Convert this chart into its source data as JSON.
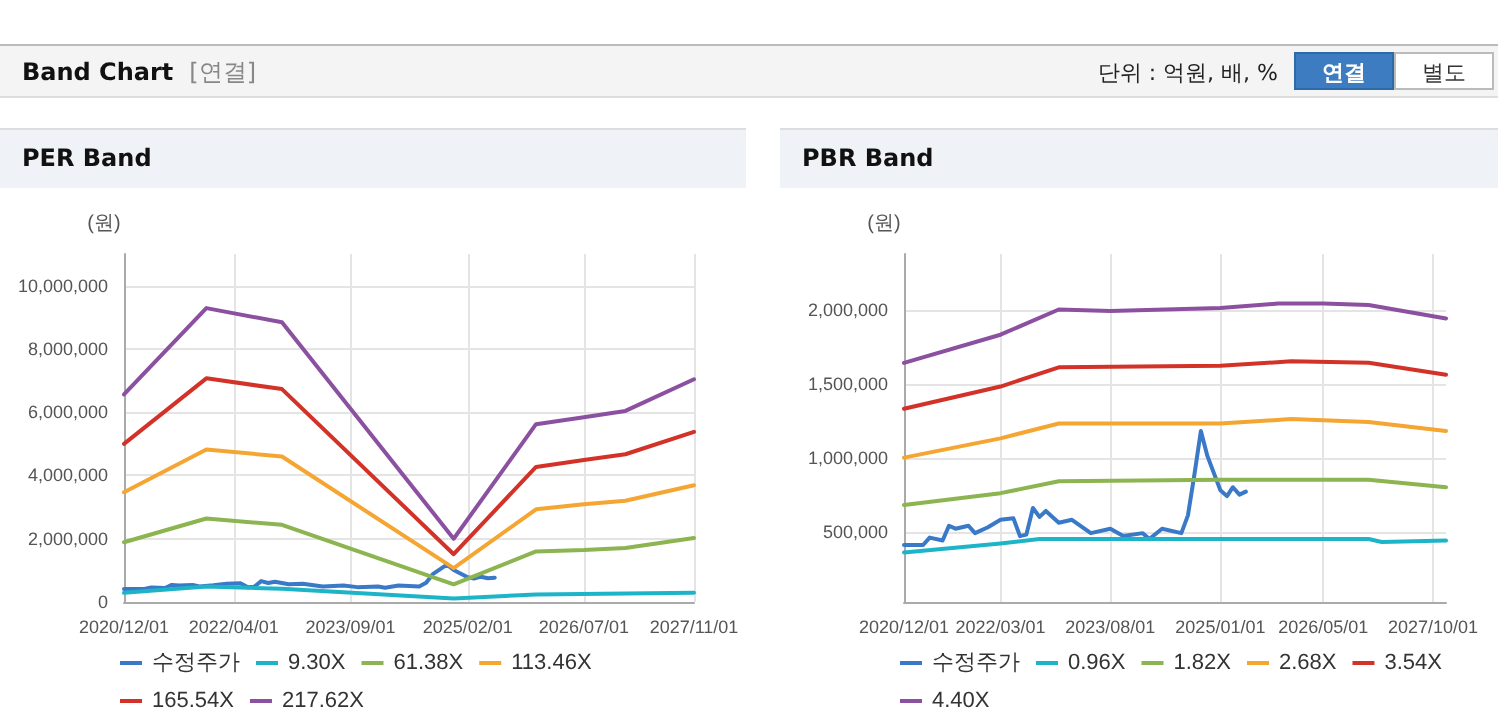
{
  "chart_data": [
    {
      "type": "other",
      "title": "Band Chart",
      "subtitle": "[연결]",
      "annotations": [
        "단위 : 억원, 배, %",
        "연결",
        "별도"
      ]
    },
    {
      "type": "line",
      "title": "PER Band",
      "ylabel": "(원)",
      "legend": "bottom",
      "grid": true,
      "marker": "none",
      "line_style": "solid",
      "xlim": [
        "2020-12-01",
        "2027-11-01"
      ],
      "xticks": [
        {
          "value": "2020-12-01",
          "label": "2020/12/01"
        },
        {
          "value": "2022-04-01",
          "label": "2022/04/01"
        },
        {
          "value": "2023-09-01",
          "label": "2023/09/01"
        },
        {
          "value": "2025-02-01",
          "label": "2025/02/01"
        },
        {
          "value": "2026-07-01",
          "label": "2026/07/01"
        },
        {
          "value": "2027-11-01",
          "label": "2027/11/01"
        }
      ],
      "ylim": [
        0,
        11000000
      ],
      "yticks": [
        {
          "value": 0,
          "label": "0"
        },
        {
          "value": 2000000,
          "label": "2,000,000"
        },
        {
          "value": 4000000,
          "label": "4,000,000"
        },
        {
          "value": 6000000,
          "label": "6,000,000"
        },
        {
          "value": 8000000,
          "label": "8,000,000"
        },
        {
          "value": 10000000,
          "label": "10,000,000"
        }
      ],
      "series": [
        {
          "name": "수정주가",
          "color": "#3a78c8",
          "x": [
            "2020-12",
            "2021-03",
            "2021-04",
            "2021-06",
            "2021-07",
            "2021-08",
            "2021-10",
            "2021-11",
            "2022-01",
            "2022-03",
            "2022-05",
            "2022-06",
            "2022-07",
            "2022-08",
            "2022-09",
            "2022-10",
            "2022-12",
            "2023-02",
            "2023-05",
            "2023-08",
            "2023-10",
            "2024-01",
            "2024-02",
            "2024-04",
            "2024-07",
            "2024-08",
            "2024-09",
            "2024-11",
            "2024-12",
            "2025-02",
            "2025-03",
            "2025-04",
            "2025-05",
            "2025-06"
          ],
          "values": [
            410000,
            410000,
            460000,
            440000,
            540000,
            520000,
            540000,
            490000,
            530000,
            580000,
            590000,
            470000,
            480000,
            660000,
            600000,
            640000,
            560000,
            580000,
            490000,
            520000,
            470000,
            490000,
            450000,
            520000,
            490000,
            610000,
            890000,
            1180000,
            1010000,
            780000,
            740000,
            800000,
            750000,
            770000
          ]
        },
        {
          "name": "9.30X",
          "color": "#1eb4c8",
          "x": [
            "2020-12",
            "2021-12",
            "2022-11",
            "2024-12",
            "2025-12",
            "2027-11"
          ],
          "values": [
            290000,
            490000,
            420000,
            110000,
            240000,
            290000
          ]
        },
        {
          "name": "61.38X",
          "color": "#8cb450",
          "x": [
            "2020-12",
            "2021-12",
            "2022-11",
            "2024-12",
            "2025-12",
            "2026-07",
            "2027-01",
            "2027-11"
          ],
          "values": [
            1890000,
            2640000,
            2440000,
            560000,
            1600000,
            1640000,
            1710000,
            2020000
          ]
        },
        {
          "name": "113.46X",
          "color": "#f5a532",
          "x": [
            "2020-12",
            "2021-12",
            "2022-11",
            "2024-12",
            "2025-12",
            "2026-07",
            "2027-01",
            "2027-11"
          ],
          "values": [
            3470000,
            4820000,
            4600000,
            1070000,
            2930000,
            3090000,
            3200000,
            3690000
          ]
        },
        {
          "name": "165.54X",
          "color": "#d23228",
          "x": [
            "2020-12",
            "2021-12",
            "2022-11",
            "2024-12",
            "2025-12",
            "2026-07",
            "2027-01",
            "2027-11"
          ],
          "values": [
            5000000,
            7070000,
            6730000,
            1510000,
            4270000,
            4490000,
            4670000,
            5380000
          ]
        },
        {
          "name": "217.62X",
          "color": "#8c50a0",
          "x": [
            "2020-12",
            "2021-12",
            "2022-11",
            "2024-12",
            "2025-12",
            "2026-07",
            "2027-01",
            "2027-11"
          ],
          "values": [
            6560000,
            9290000,
            8840000,
            2000000,
            5620000,
            5840000,
            6040000,
            7040000
          ]
        }
      ]
    },
    {
      "type": "line",
      "title": "PBR Band",
      "ylabel": "(원)",
      "legend": "bottom",
      "grid": true,
      "marker": "none",
      "line_style": "solid",
      "xlim": [
        "2020-12-01",
        "2027-12-01"
      ],
      "xticks": [
        {
          "value": "2020-12-01",
          "label": "2020/12/01"
        },
        {
          "value": "2022-03-01",
          "label": "2022/03/01"
        },
        {
          "value": "2023-08-01",
          "label": "2023/08/01"
        },
        {
          "value": "2025-01-01",
          "label": "2025/01/01"
        },
        {
          "value": "2026-05-01",
          "label": "2026/05/01"
        },
        {
          "value": "2027-10-01",
          "label": "2027/10/01"
        }
      ],
      "ylim": [
        25000,
        2375000
      ],
      "yticks": [
        {
          "value": 500000,
          "label": "500,000"
        },
        {
          "value": 1000000,
          "label": "1,000,000"
        },
        {
          "value": 1500000,
          "label": "1,500,000"
        },
        {
          "value": 2000000,
          "label": "2,000,000"
        }
      ],
      "series": [
        {
          "name": "수정주가",
          "color": "#3a78c8",
          "x": [
            "2020-12",
            "2021-03",
            "2021-04",
            "2021-06",
            "2021-07",
            "2021-08",
            "2021-10",
            "2021-11",
            "2022-01",
            "2022-03",
            "2022-05",
            "2022-06",
            "2022-07",
            "2022-08",
            "2022-09",
            "2022-10",
            "2022-12",
            "2023-02",
            "2023-05",
            "2023-08",
            "2023-10",
            "2024-01",
            "2024-02",
            "2024-04",
            "2024-07",
            "2024-08",
            "2024-09",
            "2024-10",
            "2024-11",
            "2025-01",
            "2025-02",
            "2025-03",
            "2025-04",
            "2025-05"
          ],
          "values": [
            410000,
            410000,
            460000,
            440000,
            540000,
            520000,
            540000,
            490000,
            530000,
            580000,
            590000,
            470000,
            480000,
            660000,
            600000,
            640000,
            560000,
            580000,
            490000,
            520000,
            470000,
            490000,
            450000,
            520000,
            490000,
            610000,
            890000,
            1180000,
            1010000,
            780000,
            740000,
            800000,
            750000,
            770000
          ]
        },
        {
          "name": "0.96X",
          "color": "#1eb4c8",
          "x": [
            "2020-12",
            "2022-03",
            "2022-09",
            "2025-01",
            "2026-12",
            "2027-02",
            "2027-12"
          ],
          "values": [
            360000,
            420000,
            450000,
            450000,
            450000,
            430000,
            440000
          ]
        },
        {
          "name": "1.82X",
          "color": "#8cb450",
          "x": [
            "2020-12",
            "2022-03",
            "2022-12",
            "2025-01",
            "2025-12",
            "2026-12",
            "2027-12"
          ],
          "values": [
            680000,
            760000,
            840000,
            850000,
            850000,
            850000,
            800000
          ]
        },
        {
          "name": "2.68X",
          "color": "#f5a532",
          "x": [
            "2020-12",
            "2022-03",
            "2022-12",
            "2025-01",
            "2025-12",
            "2026-12",
            "2027-12"
          ],
          "values": [
            1000000,
            1130000,
            1230000,
            1230000,
            1260000,
            1240000,
            1180000
          ]
        },
        {
          "name": "3.54X",
          "color": "#d23228",
          "x": [
            "2020-12",
            "2022-03",
            "2022-12",
            "2025-01",
            "2025-12",
            "2026-12",
            "2027-12"
          ],
          "values": [
            1330000,
            1480000,
            1610000,
            1620000,
            1650000,
            1640000,
            1560000
          ]
        },
        {
          "name": "4.40X",
          "color": "#8c50a0",
          "x": [
            "2020-12",
            "2022-03",
            "2022-12",
            "2023-08",
            "2025-01",
            "2025-10",
            "2026-05",
            "2026-12",
            "2027-12"
          ],
          "values": [
            1640000,
            1830000,
            2000000,
            1990000,
            2010000,
            2040000,
            2040000,
            2030000,
            1940000
          ]
        }
      ]
    }
  ]
}
